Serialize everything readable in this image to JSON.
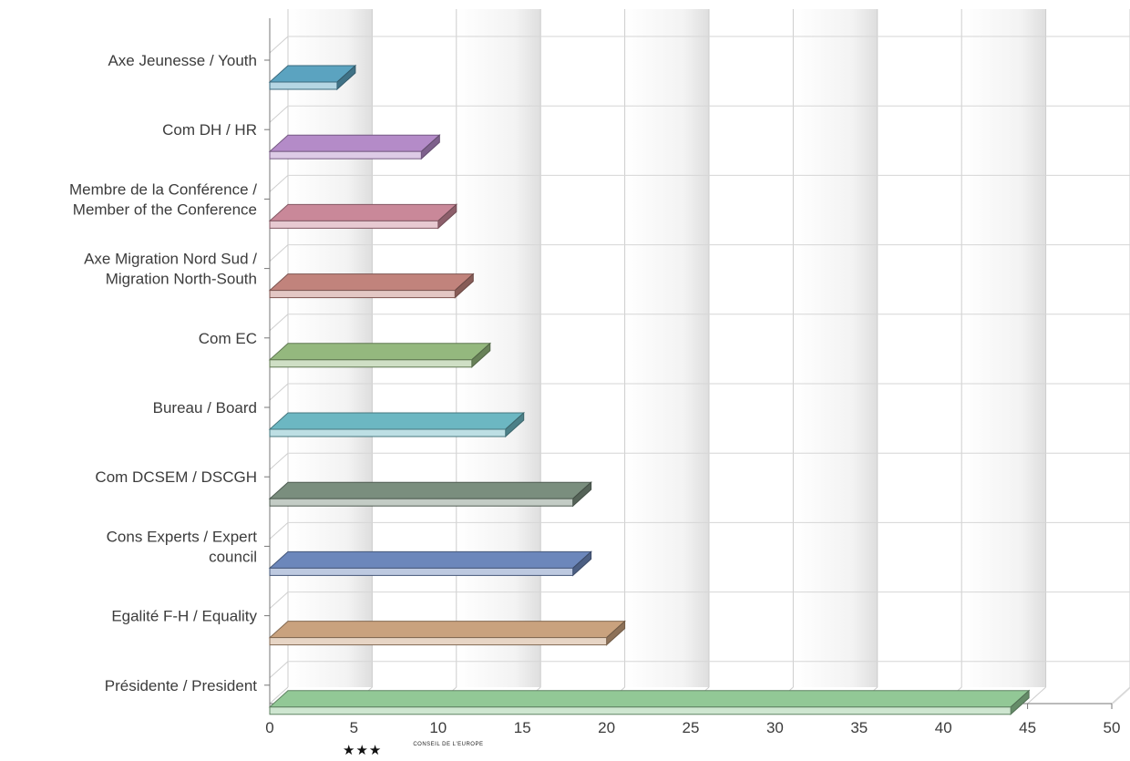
{
  "chart_data": {
    "type": "bar",
    "orientation": "horizontal",
    "style": "3d",
    "categories": [
      [
        "Axe Jeunesse / Youth"
      ],
      [
        "Com DH / HR"
      ],
      [
        "Membre de la Conférence /",
        "Member of the Conference"
      ],
      [
        "Axe Migration Nord Sud /",
        "Migration North-South"
      ],
      [
        "Com EC"
      ],
      [
        "Bureau / Board"
      ],
      [
        "Com DCSEM / DSCGH"
      ],
      [
        "Cons Experts / Expert",
        "council"
      ],
      [
        "Egalité F-H / Equality"
      ],
      [
        "Présidente / President"
      ]
    ],
    "values": [
      4,
      9,
      10,
      11,
      12,
      14,
      18,
      18,
      20,
      44
    ],
    "colors": [
      "#5ba3c0",
      "#b48bc8",
      "#c98899",
      "#c1837c",
      "#94b87e",
      "#6cb7c2",
      "#7a8e7e",
      "#6c87bb",
      "#c9a27e",
      "#92c896"
    ],
    "xlim": [
      0,
      50
    ],
    "xticks": [
      0,
      5,
      10,
      15,
      20,
      25,
      30,
      35,
      40,
      45,
      50
    ],
    "grid": true
  },
  "footer": {
    "stars": "★★★",
    "org": "CONSEIL DE L'EUROPE"
  }
}
